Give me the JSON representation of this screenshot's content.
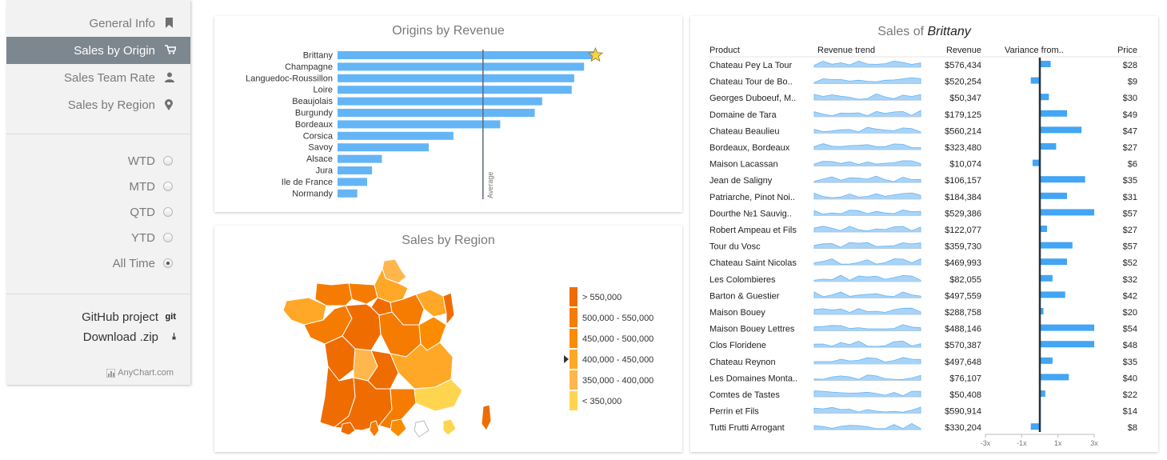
{
  "sidebar": {
    "nav": [
      {
        "label": "General Info",
        "icon": "bookmark-icon",
        "active": false
      },
      {
        "label": "Sales by Origin",
        "icon": "cart-icon",
        "active": true
      },
      {
        "label": "Sales Team Rate",
        "icon": "user-icon",
        "active": false
      },
      {
        "label": "Sales by Region",
        "icon": "map-marker-icon",
        "active": false
      }
    ],
    "periods": [
      {
        "label": "WTD",
        "selected": false
      },
      {
        "label": "MTD",
        "selected": false
      },
      {
        "label": "QTD",
        "selected": false
      },
      {
        "label": "YTD",
        "selected": false
      },
      {
        "label": "All Time",
        "selected": true
      }
    ],
    "links": [
      {
        "label": "GitHub project",
        "icon_text": "git"
      },
      {
        "label": "Download .zip",
        "icon_text": "⤓"
      }
    ],
    "brand": "AnyChart.com"
  },
  "chart_data": [
    {
      "type": "bar",
      "title": "Origins by Revenue",
      "categories": [
        "Brittany",
        "Champagne",
        "Languedoc-Roussillon",
        "Loire",
        "Beaujolais",
        "Burgundy",
        "Bordeaux",
        "Corsica",
        "Savoy",
        "Alsace",
        "Jura",
        "Ile de France",
        "Normandy"
      ],
      "values": [
        10.4,
        10.0,
        9.6,
        9.5,
        8.3,
        8.0,
        6.6,
        4.7,
        3.7,
        1.8,
        1.4,
        1.2,
        0.8
      ],
      "average_label": "Average",
      "average_value": 5.9,
      "xlim": [
        0,
        11
      ],
      "highlighted": "Brittany",
      "bar_color": "#64b5f6"
    },
    {
      "type": "table",
      "title_prefix": "Sales of ",
      "title_region": "Brittany",
      "columns": [
        "Product",
        "Revenue trend",
        "Revenue",
        "Variance from..",
        "Price"
      ],
      "variance_axis": {
        "ticks": [
          "-3x",
          "-1x",
          "1x",
          "3x"
        ],
        "range": [
          -3,
          3
        ]
      },
      "rows": [
        {
          "product": "Chateau Pey La Tour",
          "revenue": "$576,434",
          "variance": 0.6,
          "price": "$28"
        },
        {
          "product": "Chateau Tour de Bo..",
          "revenue": "$520,254",
          "variance": -0.5,
          "price": "$9"
        },
        {
          "product": "Georges Duboeuf, M..",
          "revenue": "$50,347",
          "variance": 0.5,
          "price": "$30"
        },
        {
          "product": "Domaine de Tara",
          "revenue": "$179,125",
          "variance": 1.5,
          "price": "$49"
        },
        {
          "product": "Chateau Beaulieu",
          "revenue": "$560,214",
          "variance": 2.3,
          "price": "$47"
        },
        {
          "product": "Bordeaux, Bordeaux",
          "revenue": "$323,480",
          "variance": 0.9,
          "price": "$27"
        },
        {
          "product": "Maison Lacassan",
          "revenue": "$10,074",
          "variance": -0.4,
          "price": "$6"
        },
        {
          "product": "Jean de Saligny",
          "revenue": "$106,157",
          "variance": 2.5,
          "price": "$35"
        },
        {
          "product": "Patriarche, Pinot Noi..",
          "revenue": "$184,384",
          "variance": 1.5,
          "price": "$31"
        },
        {
          "product": "Dourthe №1 Sauvig..",
          "revenue": "$529,386",
          "variance": 3.0,
          "price": "$57"
        },
        {
          "product": "Robert Ampeau et Fils",
          "revenue": "$122,077",
          "variance": 0.4,
          "price": "$27"
        },
        {
          "product": "Tour du Vosc",
          "revenue": "$359,730",
          "variance": 1.8,
          "price": "$57"
        },
        {
          "product": "Chateau Saint Nicolas",
          "revenue": "$469,993",
          "variance": 1.5,
          "price": "$52"
        },
        {
          "product": "Les Colombieres",
          "revenue": "$82,055",
          "variance": 0.7,
          "price": "$32"
        },
        {
          "product": "Barton & Guestier",
          "revenue": "$497,559",
          "variance": 1.4,
          "price": "$42"
        },
        {
          "product": "Maison Bouey",
          "revenue": "$288,758",
          "variance": 0.2,
          "price": "$20"
        },
        {
          "product": "Maison Bouey Lettres",
          "revenue": "$488,146",
          "variance": 3.0,
          "price": "$54"
        },
        {
          "product": "Clos Floridene",
          "revenue": "$570,387",
          "variance": 3.0,
          "price": "$48"
        },
        {
          "product": "Chateau Reynon",
          "revenue": "$497,648",
          "variance": 0.7,
          "price": "$35"
        },
        {
          "product": "Les Domaines Monta..",
          "revenue": "$76,107",
          "variance": 1.6,
          "price": "$40"
        },
        {
          "product": "Comtes de Tastes",
          "revenue": "$50,408",
          "variance": 0.3,
          "price": "$22"
        },
        {
          "product": "Perrin et Fils",
          "revenue": "$590,914",
          "variance": 0.0,
          "price": "$14"
        },
        {
          "product": "Tutti Frutti Arrogant",
          "revenue": "$330,204",
          "variance": -0.5,
          "price": "$8"
        }
      ]
    }
  ],
  "map": {
    "title": "Sales by Region",
    "legend": [
      {
        "label": "> 550,000",
        "color": "#ef6c00"
      },
      {
        "label": "500,000 - 550,000",
        "color": "#f57c00"
      },
      {
        "label": "450,000 - 500,000",
        "color": "#fb8c00"
      },
      {
        "label": "400,000 - 450,000",
        "color": "#ffa726"
      },
      {
        "label": "350,000 - 400,000",
        "color": "#ffb74d"
      },
      {
        "label": "< 350,000",
        "color": "#ffd54f"
      }
    ],
    "legend_marker_index": 3
  }
}
